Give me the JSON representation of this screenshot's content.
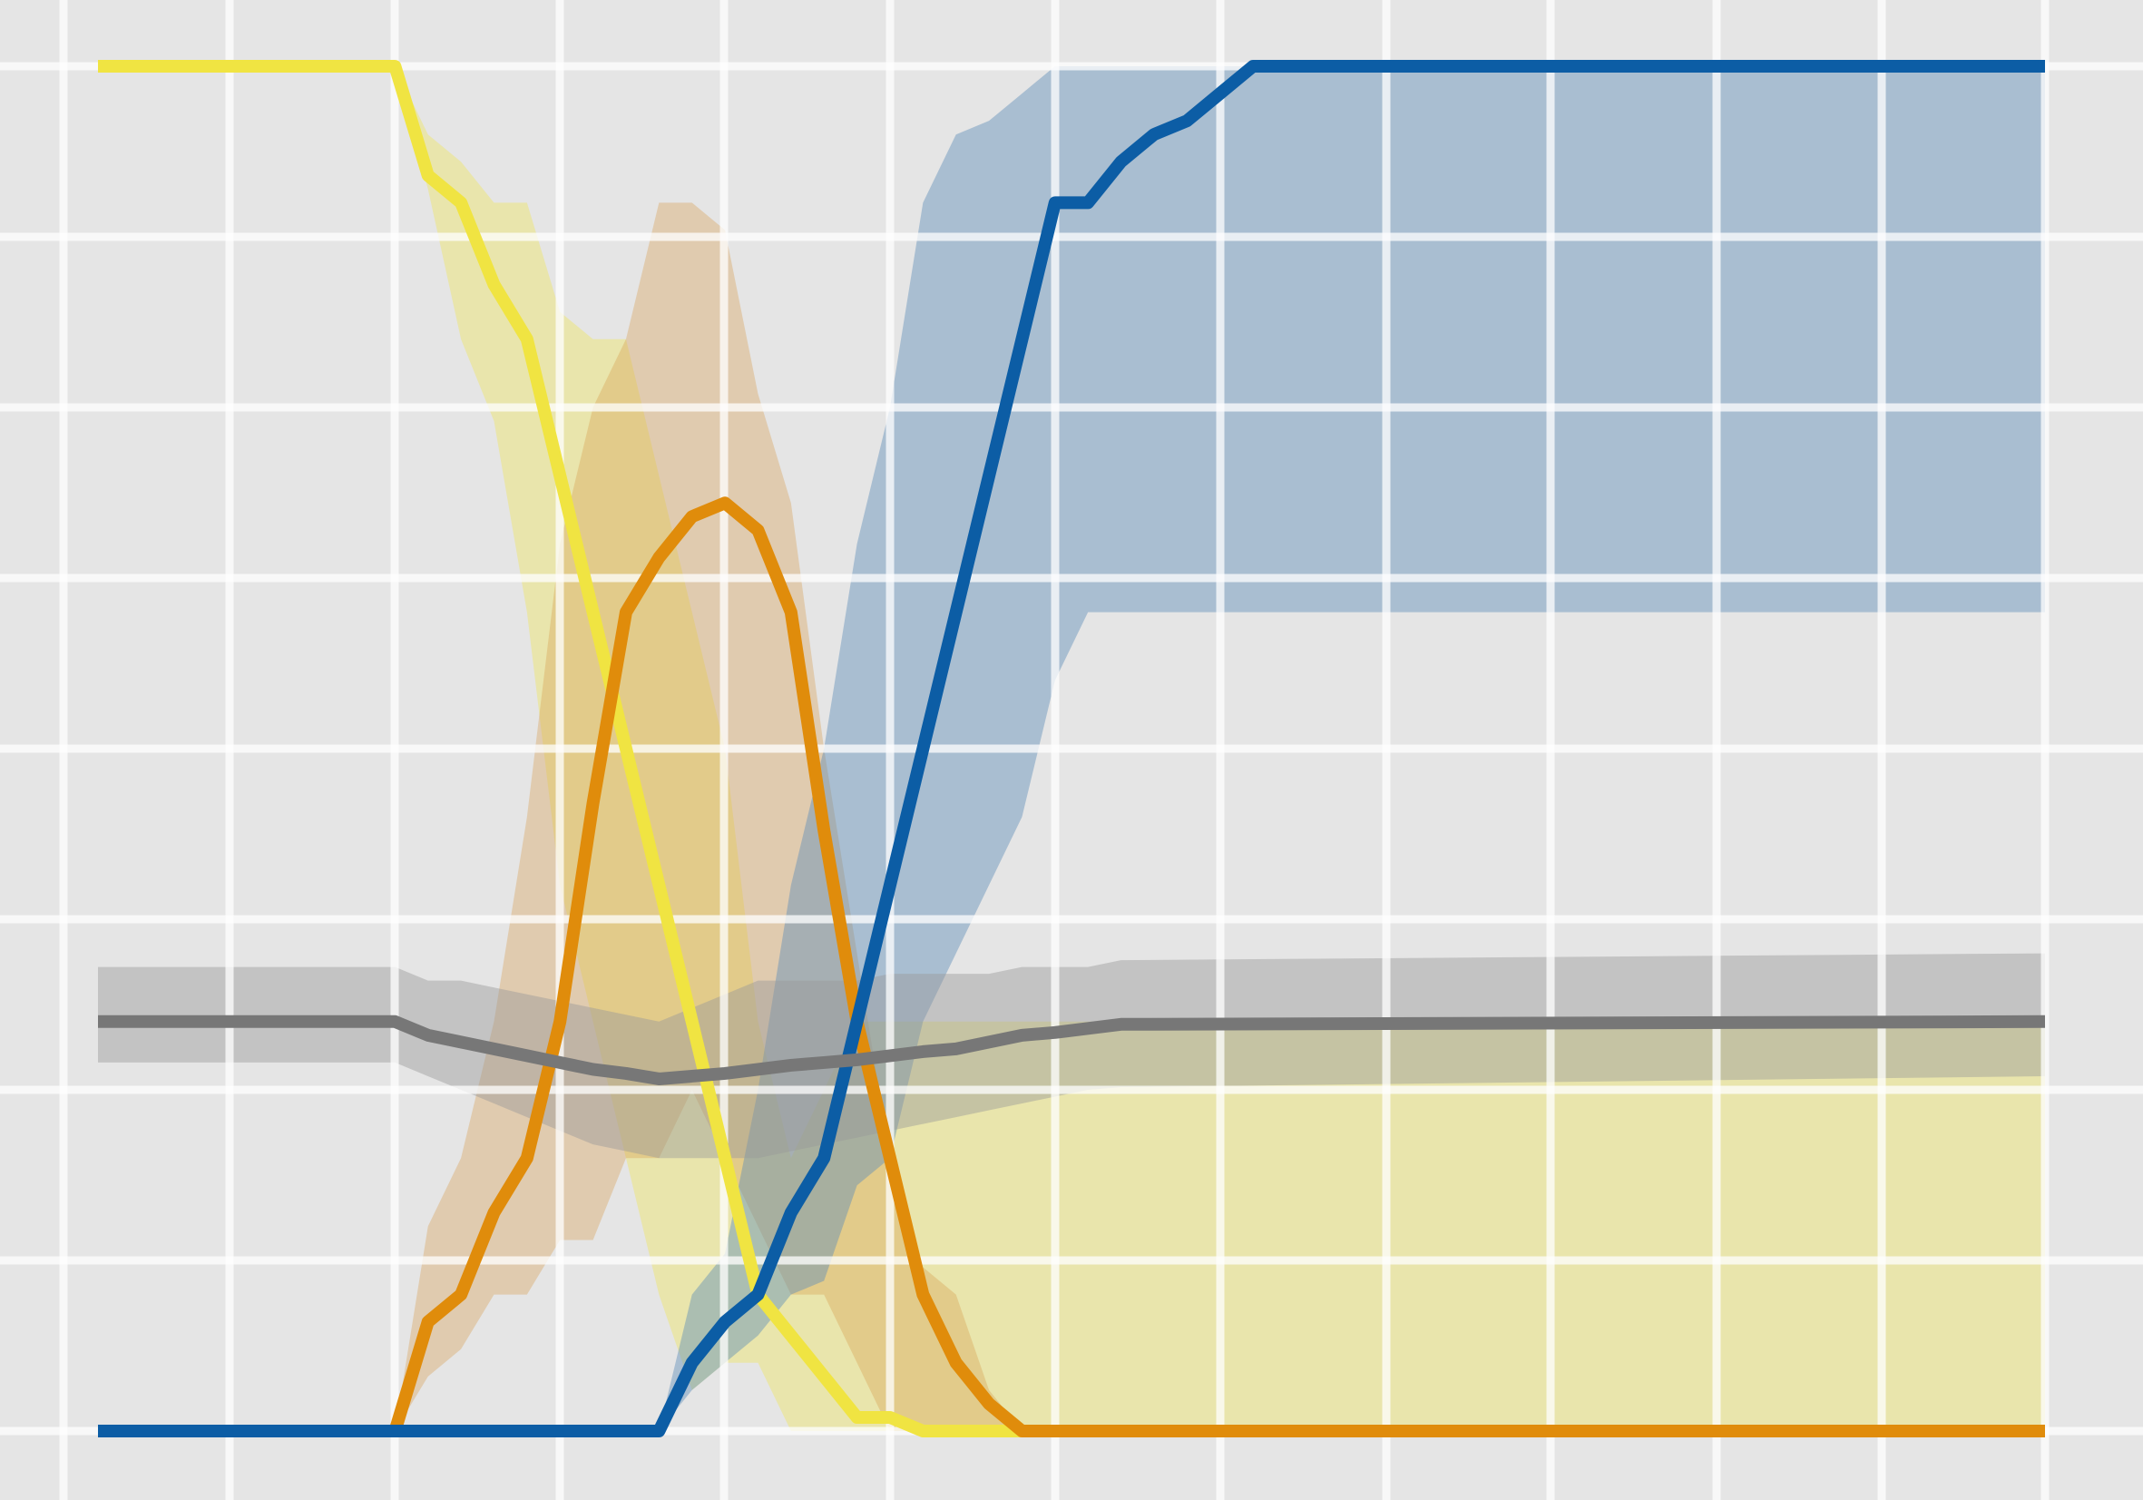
{
  "chart_data": {
    "type": "line",
    "title": "",
    "xlabel": "",
    "ylabel": "",
    "grid": true,
    "xlim": [
      0,
      59
    ],
    "ylim": [
      0,
      1
    ],
    "background_color": "#e5e5e5",
    "grid_color": "#ffffff",
    "series": [
      {
        "color": "#f0e442",
        "band_color": "#f0e442",
        "band_opacity": 0.35,
        "x": [
          0,
          9,
          10,
          11,
          12,
          13,
          14,
          15,
          16,
          17,
          18,
          19,
          20,
          21,
          22,
          23,
          24,
          25,
          26,
          27,
          28,
          29,
          30,
          31,
          59
        ],
        "y": [
          1.0,
          1.0,
          0.92,
          0.9,
          0.84,
          0.8,
          0.7,
          0.6,
          0.5,
          0.4,
          0.3,
          0.2,
          0.1,
          0.07,
          0.04,
          0.01,
          0.01,
          0.0,
          0.0,
          0.0,
          0.0,
          0.0,
          0.0,
          0.0,
          0.0
        ],
        "band_lower": [
          1.0,
          1.0,
          0.91,
          0.8,
          0.74,
          0.6,
          0.4,
          0.3,
          0.2,
          0.1,
          0.03,
          0.05,
          0.05,
          0.0,
          0.0,
          0.0,
          0.0,
          0.0,
          0.0,
          0.0,
          0.0,
          0.0,
          0.0,
          0.0,
          0.0
        ],
        "band_upper": [
          1.0,
          1.0,
          0.95,
          0.93,
          0.9,
          0.9,
          0.82,
          0.8,
          0.8,
          0.7,
          0.6,
          0.5,
          0.3,
          0.2,
          0.25,
          0.3,
          0.3,
          0.3,
          0.3,
          0.3,
          0.3,
          0.3,
          0.3,
          0.3,
          0.3
        ]
      },
      {
        "color": "#e08c0b",
        "band_color": "#d69b4a",
        "band_opacity": 0.35,
        "x": [
          0,
          9,
          10,
          11,
          12,
          13,
          14,
          15,
          16,
          17,
          18,
          19,
          20,
          21,
          22,
          23,
          24,
          25,
          26,
          27,
          28,
          29,
          30,
          31,
          59
        ],
        "y": [
          0.0,
          0.0,
          0.08,
          0.1,
          0.16,
          0.2,
          0.3,
          0.46,
          0.6,
          0.64,
          0.67,
          0.68,
          0.66,
          0.6,
          0.44,
          0.3,
          0.2,
          0.1,
          0.05,
          0.02,
          0.0,
          0.0,
          0.0,
          0.0,
          0.0
        ],
        "band_lower": [
          0.0,
          0.0,
          0.04,
          0.06,
          0.1,
          0.1,
          0.14,
          0.14,
          0.2,
          0.2,
          0.25,
          0.2,
          0.15,
          0.1,
          0.1,
          0.05,
          0.0,
          0.0,
          0.0,
          0.0,
          0.0,
          0.0,
          0.0,
          0.0,
          0.0
        ],
        "band_upper": [
          0.0,
          0.0,
          0.15,
          0.2,
          0.3,
          0.45,
          0.65,
          0.75,
          0.8,
          0.9,
          0.9,
          0.88,
          0.76,
          0.68,
          0.5,
          0.35,
          0.2,
          0.12,
          0.1,
          0.03,
          0.0,
          0.0,
          0.0,
          0.0,
          0.0
        ]
      },
      {
        "color": "#0c5da5",
        "band_color": "#5f8fb9",
        "band_opacity": 0.45,
        "x": [
          0,
          17,
          18,
          19,
          20,
          21,
          22,
          23,
          24,
          25,
          26,
          27,
          28,
          29,
          30,
          31,
          32,
          33,
          34,
          35,
          36,
          37,
          38,
          59
        ],
        "y": [
          0.0,
          0.0,
          0.05,
          0.08,
          0.1,
          0.16,
          0.2,
          0.3,
          0.4,
          0.5,
          0.6,
          0.7,
          0.8,
          0.9,
          0.9,
          0.93,
          0.95,
          0.96,
          0.98,
          1.0,
          1.0,
          1.0,
          1.0,
          1.0
        ],
        "band_lower": [
          0.0,
          0.0,
          0.03,
          0.05,
          0.07,
          0.1,
          0.11,
          0.18,
          0.2,
          0.3,
          0.35,
          0.4,
          0.45,
          0.55,
          0.6,
          0.6,
          0.6,
          0.6,
          0.6,
          0.6,
          0.6,
          0.6,
          0.6,
          0.6
        ],
        "band_upper": [
          0.0,
          0.0,
          0.1,
          0.13,
          0.25,
          0.4,
          0.5,
          0.65,
          0.75,
          0.9,
          0.95,
          0.96,
          0.98,
          1.0,
          1.0,
          1.0,
          1.0,
          1.0,
          1.0,
          1.0,
          1.0,
          1.0,
          1.0,
          1.0
        ]
      },
      {
        "color": "#777777",
        "band_color": "#9a9a9a",
        "band_opacity": 0.45,
        "x": [
          0,
          9,
          10,
          11,
          12,
          13,
          14,
          15,
          16,
          17,
          18,
          19,
          20,
          21,
          22,
          23,
          24,
          25,
          26,
          27,
          28,
          29,
          30,
          31,
          59
        ],
        "y": [
          0.3,
          0.3,
          0.29,
          0.285,
          0.28,
          0.275,
          0.27,
          0.265,
          0.262,
          0.258,
          0.26,
          0.262,
          0.265,
          0.268,
          0.27,
          0.272,
          0.275,
          0.278,
          0.28,
          0.285,
          0.29,
          0.292,
          0.295,
          0.298,
          0.3
        ],
        "band_lower": [
          0.27,
          0.27,
          0.26,
          0.25,
          0.24,
          0.23,
          0.22,
          0.21,
          0.205,
          0.2,
          0.2,
          0.2,
          0.2,
          0.205,
          0.21,
          0.215,
          0.22,
          0.225,
          0.23,
          0.235,
          0.24,
          0.245,
          0.25,
          0.252,
          0.26
        ],
        "band_upper": [
          0.34,
          0.34,
          0.33,
          0.33,
          0.325,
          0.32,
          0.315,
          0.31,
          0.305,
          0.3,
          0.31,
          0.32,
          0.33,
          0.33,
          0.33,
          0.33,
          0.335,
          0.335,
          0.335,
          0.335,
          0.34,
          0.34,
          0.34,
          0.345,
          0.35
        ]
      }
    ]
  }
}
